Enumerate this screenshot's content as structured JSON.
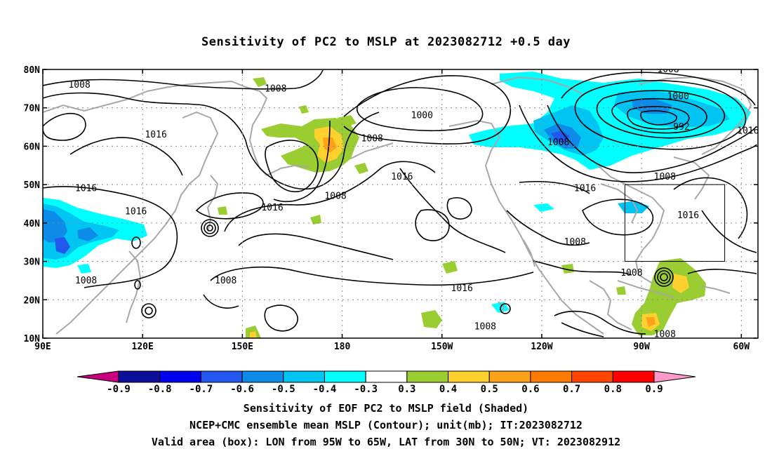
{
  "title": "Sensitivity of PC2 to MSLP at 2023082712 +0.5 day",
  "map": {
    "lon_range": [
      90,
      305
    ],
    "lat_range": [
      10,
      80
    ],
    "lon_ticks": [
      {
        "lon": 90,
        "label": "90E"
      },
      {
        "lon": 120,
        "label": "120E"
      },
      {
        "lon": 150,
        "label": "150E"
      },
      {
        "lon": 180,
        "label": "180"
      },
      {
        "lon": 210,
        "label": "150W"
      },
      {
        "lon": 240,
        "label": "120W"
      },
      {
        "lon": 270,
        "label": "90W"
      },
      {
        "lon": 300,
        "label": "60W"
      }
    ],
    "lat_ticks": [
      {
        "lat": 80,
        "label": "80N"
      },
      {
        "lat": 70,
        "label": "70N"
      },
      {
        "lat": 60,
        "label": "60N"
      },
      {
        "lat": 50,
        "label": "50N"
      },
      {
        "lat": 40,
        "label": "40N"
      },
      {
        "lat": 30,
        "label": "30N"
      },
      {
        "lat": 20,
        "label": "20N"
      },
      {
        "lat": 10,
        "label": "10N"
      }
    ],
    "valid_box": {
      "lon_min": 265,
      "lon_max": 295,
      "lat_min": 30,
      "lat_max": 50
    },
    "contour_labels": [
      {
        "text": "1008",
        "lon": 101,
        "lat": 76
      },
      {
        "text": "1008",
        "lon": 160,
        "lat": 75
      },
      {
        "text": "1016",
        "lon": 124,
        "lat": 63
      },
      {
        "text": "1000",
        "lon": 204,
        "lat": 68
      },
      {
        "text": "1008",
        "lon": 189,
        "lat": 62
      },
      {
        "text": "1016",
        "lon": 198,
        "lat": 52
      },
      {
        "text": "1008",
        "lon": 178,
        "lat": 47
      },
      {
        "text": "1016",
        "lon": 159,
        "lat": 44
      },
      {
        "text": "1016",
        "lon": 103,
        "lat": 49
      },
      {
        "text": "1016",
        "lon": 118,
        "lat": 43
      },
      {
        "text": "1008",
        "lon": 103,
        "lat": 25
      },
      {
        "text": "1008",
        "lon": 145,
        "lat": 25
      },
      {
        "text": "1016",
        "lon": 216,
        "lat": 23
      },
      {
        "text": "1008",
        "lon": 223,
        "lat": 13
      },
      {
        "text": "1008",
        "lon": 250,
        "lat": 35
      },
      {
        "text": "1016",
        "lon": 253,
        "lat": 49
      },
      {
        "text": "1008",
        "lon": 267,
        "lat": 27
      },
      {
        "text": "1008",
        "lon": 278,
        "lat": 80
      },
      {
        "text": "1000",
        "lon": 281,
        "lat": 73
      },
      {
        "text": "992",
        "lon": 282,
        "lat": 65
      },
      {
        "text": "1008",
        "lon": 245,
        "lat": 61
      },
      {
        "text": "1008",
        "lon": 277,
        "lat": 52
      },
      {
        "text": "1016",
        "lon": 284,
        "lat": 42
      },
      {
        "text": "1016",
        "lon": 302,
        "lat": 64
      },
      {
        "text": "1008",
        "lon": 277,
        "lat": 11
      }
    ]
  },
  "colorbar": {
    "colors": [
      "#c9007f",
      "#0c0f99",
      "#0000f0",
      "#2457ee",
      "#0c8be8",
      "#00c4f2",
      "#00ffff",
      "#ffffff",
      "#9acd32",
      "#ffd12e",
      "#ffa21a",
      "#ff7b00",
      "#ff4500",
      "#ff0000",
      "#ff99cc"
    ],
    "labels": [
      "-0.9",
      "-0.8",
      "-0.7",
      "-0.6",
      "-0.5",
      "-0.4",
      "-0.3",
      "0.3",
      "0.4",
      "0.5",
      "0.6",
      "0.7",
      "0.8",
      "0.9"
    ]
  },
  "footer": {
    "line1": "Sensitivity of EOF PC2 to MSLP field (Shaded)",
    "line2": "NCEP+CMC ensemble mean MSLP (Contour); unit(mb); IT:2023082712",
    "line3": "Valid area (box): LON from 95W to 65W, LAT from 30N to 50N; VT: 2023082912"
  }
}
